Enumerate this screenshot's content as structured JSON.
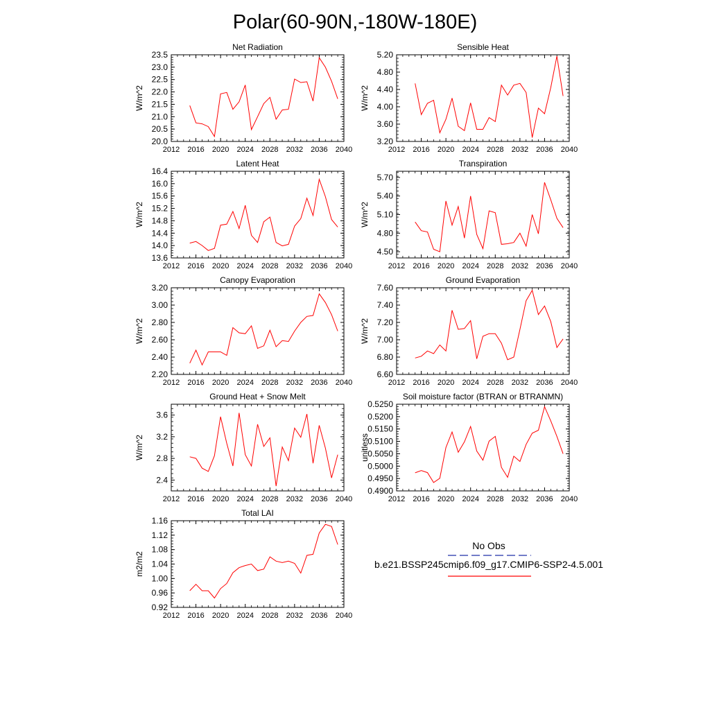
{
  "page_title": "Polar(60-90N,-180W-180E)",
  "colors": {
    "model_line": "#ff0000",
    "obs_line": "#1f2fa8",
    "axis": "#000000"
  },
  "legend": {
    "obs_label": "No Obs",
    "model_label": "b.e21.BSSP245cmip6.f09_g17.CMIP6-SSP2-4.5.001"
  },
  "chart_data": [
    {
      "type": "line",
      "title": "Net Radiation",
      "ylabel": "W/m^2",
      "xlim": [
        2012,
        2040
      ],
      "ylim": [
        20.0,
        23.5
      ],
      "xticks": [
        2012,
        2016,
        2020,
        2024,
        2028,
        2032,
        2036,
        2040
      ],
      "xtick_labels": [
        "2012",
        "2016",
        "2020",
        "2024",
        "2028",
        "2032",
        "2036",
        "2040"
      ],
      "yticks": [
        20.0,
        20.5,
        21.0,
        21.5,
        22.0,
        22.5,
        23.0,
        23.5
      ],
      "ytick_labels": [
        "20.0",
        "20.5",
        "21.0",
        "21.5",
        "22.0",
        "22.5",
        "23.0",
        "23.5"
      ],
      "x": [
        2015,
        2016,
        2017,
        2018,
        2019,
        2020,
        2021,
        2022,
        2023,
        2024,
        2025,
        2026,
        2027,
        2028,
        2029,
        2030,
        2031,
        2032,
        2033,
        2034,
        2035,
        2036,
        2037,
        2038,
        2039
      ],
      "series": [
        {
          "values": [
            21.45,
            20.75,
            20.71,
            20.6,
            20.2,
            21.92,
            21.98,
            21.3,
            21.6,
            22.28,
            20.48,
            21.0,
            21.53,
            21.78,
            20.9,
            21.27,
            21.3,
            22.52,
            22.38,
            22.41,
            21.63,
            23.38,
            23.0,
            22.43,
            21.72
          ]
        }
      ]
    },
    {
      "type": "line",
      "title": "Sensible Heat",
      "ylabel": "W/m^2",
      "xlim": [
        2012,
        2040
      ],
      "ylim": [
        3.2,
        5.2
      ],
      "xticks": [
        2012,
        2016,
        2020,
        2024,
        2028,
        2032,
        2036,
        2040
      ],
      "xtick_labels": [
        "2012",
        "2016",
        "2020",
        "2024",
        "2028",
        "2032",
        "2036",
        "2040"
      ],
      "yticks": [
        3.2,
        3.6,
        4.0,
        4.4,
        4.8,
        5.2
      ],
      "ytick_labels": [
        "3.20",
        "3.60",
        "4.00",
        "4.40",
        "4.80",
        "5.20"
      ],
      "x": [
        2015,
        2016,
        2017,
        2018,
        2019,
        2020,
        2021,
        2022,
        2023,
        2024,
        2025,
        2026,
        2027,
        2028,
        2029,
        2030,
        2031,
        2032,
        2033,
        2034,
        2035,
        2036,
        2037,
        2038,
        2039
      ],
      "series": [
        {
          "values": [
            4.54,
            3.82,
            4.08,
            4.15,
            3.4,
            3.71,
            4.2,
            3.55,
            3.45,
            4.09,
            3.48,
            3.48,
            3.75,
            3.66,
            4.5,
            4.27,
            4.5,
            4.54,
            4.33,
            3.29,
            3.97,
            3.84,
            4.44,
            5.17,
            4.25
          ]
        }
      ]
    },
    {
      "type": "line",
      "title": "Latent Heat",
      "ylabel": "W/m^2",
      "xlim": [
        2012,
        2040
      ],
      "ylim": [
        13.6,
        16.4
      ],
      "xticks": [
        2012,
        2016,
        2020,
        2024,
        2028,
        2032,
        2036,
        2040
      ],
      "xtick_labels": [
        "2012",
        "2016",
        "2020",
        "2024",
        "2028",
        "2032",
        "2036",
        "2040"
      ],
      "yticks": [
        13.6,
        14.0,
        14.4,
        14.8,
        15.2,
        15.6,
        16.0,
        16.4
      ],
      "ytick_labels": [
        "13.6",
        "14.0",
        "14.4",
        "14.8",
        "15.2",
        "15.6",
        "16.0",
        "16.4"
      ],
      "x": [
        2015,
        2016,
        2017,
        2018,
        2019,
        2020,
        2021,
        2022,
        2023,
        2024,
        2025,
        2026,
        2027,
        2028,
        2029,
        2030,
        2031,
        2032,
        2033,
        2034,
        2035,
        2036,
        2037,
        2038,
        2039
      ],
      "series": [
        {
          "values": [
            14.08,
            14.13,
            14.0,
            13.84,
            13.91,
            14.66,
            14.69,
            15.1,
            14.55,
            15.3,
            14.33,
            14.1,
            14.77,
            14.92,
            14.1,
            13.99,
            14.04,
            14.63,
            14.87,
            15.53,
            14.97,
            16.14,
            15.58,
            14.84,
            14.6
          ]
        }
      ]
    },
    {
      "type": "line",
      "title": "Transpiration",
      "ylabel": "W/m^2",
      "xlim": [
        2012,
        2040
      ],
      "ylim": [
        4.4,
        5.8
      ],
      "xticks": [
        2012,
        2016,
        2020,
        2024,
        2028,
        2032,
        2036,
        2040
      ],
      "xtick_labels": [
        "2012",
        "2016",
        "2020",
        "2024",
        "2028",
        "2032",
        "2036",
        "2040"
      ],
      "yticks": [
        4.5,
        4.8,
        5.1,
        5.4,
        5.7
      ],
      "ytick_labels": [
        "4.50",
        "4.80",
        "5.10",
        "5.40",
        "5.70"
      ],
      "x": [
        2015,
        2016,
        2017,
        2018,
        2019,
        2020,
        2021,
        2022,
        2023,
        2024,
        2025,
        2026,
        2027,
        2028,
        2029,
        2030,
        2031,
        2032,
        2033,
        2034,
        2035,
        2036,
        2037,
        2038,
        2039
      ],
      "series": [
        {
          "values": [
            4.98,
            4.84,
            4.82,
            4.54,
            4.5,
            5.32,
            4.93,
            5.23,
            4.72,
            5.4,
            4.78,
            4.55,
            5.16,
            5.13,
            4.62,
            4.63,
            4.65,
            4.8,
            4.59,
            5.1,
            4.79,
            5.62,
            5.34,
            5.04,
            4.89
          ]
        }
      ]
    },
    {
      "type": "line",
      "title": "Canopy Evaporation",
      "ylabel": "W/m^2",
      "xlim": [
        2012,
        2040
      ],
      "ylim": [
        2.2,
        3.2
      ],
      "xticks": [
        2012,
        2016,
        2020,
        2024,
        2028,
        2032,
        2036,
        2040
      ],
      "xtick_labels": [
        "2012",
        "2016",
        "2020",
        "2024",
        "2028",
        "2032",
        "2036",
        "2040"
      ],
      "yticks": [
        2.2,
        2.4,
        2.6,
        2.8,
        3.0,
        3.2
      ],
      "ytick_labels": [
        "2.20",
        "2.40",
        "2.60",
        "2.80",
        "3.00",
        "3.20"
      ],
      "x": [
        2015,
        2016,
        2017,
        2018,
        2019,
        2020,
        2021,
        2022,
        2023,
        2024,
        2025,
        2026,
        2027,
        2028,
        2029,
        2030,
        2031,
        2032,
        2033,
        2034,
        2035,
        2036,
        2037,
        2038,
        2039
      ],
      "series": [
        {
          "values": [
            2.33,
            2.48,
            2.31,
            2.46,
            2.46,
            2.46,
            2.42,
            2.74,
            2.68,
            2.67,
            2.76,
            2.5,
            2.53,
            2.71,
            2.52,
            2.59,
            2.58,
            2.7,
            2.8,
            2.87,
            2.88,
            3.13,
            3.03,
            2.89,
            2.7
          ]
        }
      ]
    },
    {
      "type": "line",
      "title": "Ground Evaporation",
      "ylabel": "W/m^2",
      "xlim": [
        2012,
        2040
      ],
      "ylim": [
        6.6,
        7.6
      ],
      "xticks": [
        2012,
        2016,
        2020,
        2024,
        2028,
        2032,
        2036,
        2040
      ],
      "xtick_labels": [
        "2012",
        "2016",
        "2020",
        "2024",
        "2028",
        "2032",
        "2036",
        "2040"
      ],
      "yticks": [
        6.6,
        6.8,
        7.0,
        7.2,
        7.4,
        7.6
      ],
      "ytick_labels": [
        "6.60",
        "6.80",
        "7.00",
        "7.20",
        "7.40",
        "7.60"
      ],
      "x": [
        2015,
        2016,
        2017,
        2018,
        2019,
        2020,
        2021,
        2022,
        2023,
        2024,
        2025,
        2026,
        2027,
        2028,
        2029,
        2030,
        2031,
        2032,
        2033,
        2034,
        2035,
        2036,
        2037,
        2038,
        2039
      ],
      "series": [
        {
          "values": [
            6.79,
            6.81,
            6.87,
            6.84,
            6.94,
            6.87,
            7.34,
            7.12,
            7.13,
            7.22,
            6.78,
            7.04,
            7.07,
            7.07,
            6.96,
            6.77,
            6.8,
            7.12,
            7.45,
            7.57,
            7.29,
            7.39,
            7.21,
            6.91,
            7.01
          ]
        }
      ]
    },
    {
      "type": "line",
      "title": "Ground Heat + Snow Melt",
      "ylabel": "W/m^2",
      "xlim": [
        2012,
        2040
      ],
      "ylim": [
        2.2,
        3.8
      ],
      "xticks": [
        2012,
        2016,
        2020,
        2024,
        2028,
        2032,
        2036,
        2040
      ],
      "xtick_labels": [
        "2012",
        "2016",
        "2020",
        "2024",
        "2028",
        "2032",
        "2036",
        "2040"
      ],
      "yticks": [
        2.4,
        2.8,
        3.2,
        3.6
      ],
      "ytick_labels": [
        "2.4",
        "2.8",
        "3.2",
        "3.6"
      ],
      "x": [
        2015,
        2016,
        2017,
        2018,
        2019,
        2020,
        2021,
        2022,
        2023,
        2024,
        2025,
        2026,
        2027,
        2028,
        2029,
        2030,
        2031,
        2032,
        2033,
        2034,
        2035,
        2036,
        2037,
        2038,
        2039
      ],
      "series": [
        {
          "values": [
            2.83,
            2.8,
            2.62,
            2.56,
            2.85,
            3.57,
            3.08,
            2.66,
            3.64,
            2.87,
            2.66,
            3.43,
            3.02,
            3.18,
            2.29,
            3.01,
            2.76,
            3.36,
            3.19,
            3.62,
            2.71,
            3.41,
            2.99,
            2.44,
            2.87
          ]
        }
      ]
    },
    {
      "type": "line",
      "title": "Soil moisture factor (BTRAN or BTRANMN)",
      "ylabel": "unitless",
      "xlim": [
        2012,
        2040
      ],
      "ylim": [
        0.49,
        0.525
      ],
      "xticks": [
        2012,
        2016,
        2020,
        2024,
        2028,
        2032,
        2036,
        2040
      ],
      "xtick_labels": [
        "2012",
        "2016",
        "2020",
        "2024",
        "2028",
        "2032",
        "2036",
        "2040"
      ],
      "yticks": [
        0.49,
        0.495,
        0.5,
        0.505,
        0.51,
        0.515,
        0.52,
        0.525
      ],
      "ytick_labels": [
        "0.4900",
        "0.4950",
        "0.5000",
        "0.5050",
        "0.5100",
        "0.5150",
        "0.5200",
        "0.5250"
      ],
      "x": [
        2015,
        2016,
        2017,
        2018,
        2019,
        2020,
        2021,
        2022,
        2023,
        2024,
        2025,
        2026,
        2027,
        2028,
        2029,
        2030,
        2031,
        2032,
        2033,
        2034,
        2035,
        2036,
        2037,
        2038,
        2039
      ],
      "series": [
        {
          "values": [
            0.4973,
            0.4982,
            0.4974,
            0.4934,
            0.4951,
            0.5075,
            0.5138,
            0.5056,
            0.5098,
            0.516,
            0.5061,
            0.5024,
            0.5101,
            0.512,
            0.4995,
            0.4955,
            0.504,
            0.5019,
            0.5088,
            0.5133,
            0.5145,
            0.524,
            0.5183,
            0.512,
            0.505
          ]
        }
      ]
    },
    {
      "type": "line",
      "title": "Total LAI",
      "ylabel": "m2/m2",
      "xlim": [
        2012,
        2040
      ],
      "ylim": [
        0.92,
        1.16
      ],
      "xticks": [
        2012,
        2016,
        2020,
        2024,
        2028,
        2032,
        2036,
        2040
      ],
      "xtick_labels": [
        "2012",
        "2016",
        "2020",
        "2024",
        "2028",
        "2032",
        "2036",
        "2040"
      ],
      "yticks": [
        0.92,
        0.96,
        1.0,
        1.04,
        1.08,
        1.12,
        1.16
      ],
      "ytick_labels": [
        "0.92",
        "0.96",
        "1.00",
        "1.04",
        "1.08",
        "1.12",
        "1.16"
      ],
      "x": [
        2015,
        2016,
        2017,
        2018,
        2019,
        2020,
        2021,
        2022,
        2023,
        2024,
        2025,
        2026,
        2027,
        2028,
        2029,
        2030,
        2031,
        2032,
        2033,
        2034,
        2035,
        2036,
        2037,
        2038,
        2039
      ],
      "series": [
        {
          "values": [
            0.966,
            0.984,
            0.966,
            0.966,
            0.946,
            0.972,
            0.986,
            1.016,
            1.03,
            1.036,
            1.04,
            1.022,
            1.026,
            1.06,
            1.048,
            1.044,
            1.048,
            1.042,
            1.015,
            1.064,
            1.067,
            1.126,
            1.15,
            1.144,
            1.094
          ]
        }
      ]
    }
  ]
}
